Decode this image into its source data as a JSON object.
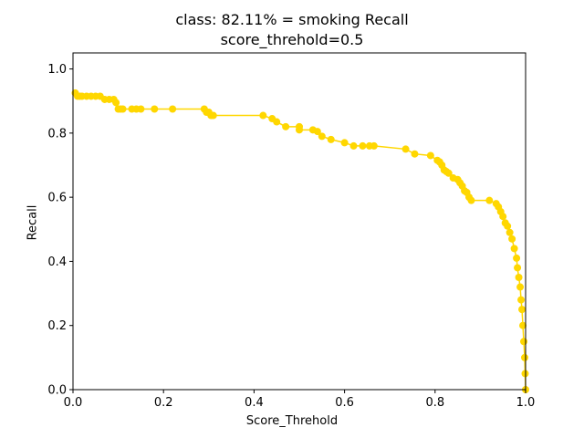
{
  "chart_data": {
    "type": "line",
    "title": "class: 82.11% = smoking Recall",
    "subtitle": "score_threhold=0.5",
    "xlabel": "Score_Threhold",
    "ylabel": "Recall",
    "xlim": [
      0.0,
      1.0
    ],
    "ylim": [
      0.0,
      1.05
    ],
    "x_ticks": [
      "0.0",
      "0.2",
      "0.4",
      "0.6",
      "0.8",
      "1.0"
    ],
    "y_ticks": [
      "0.0",
      "0.2",
      "0.4",
      "0.6",
      "0.8",
      "1.0"
    ],
    "grid": false,
    "line_color": "#FFD700",
    "marker": "circle",
    "series": [
      {
        "x": [
          0.005,
          0.01,
          0.015,
          0.02,
          0.03,
          0.04,
          0.05,
          0.06,
          0.07,
          0.08,
          0.09,
          0.095,
          0.1,
          0.105,
          0.11,
          0.13,
          0.14,
          0.15,
          0.18,
          0.22,
          0.29,
          0.295,
          0.3,
          0.305,
          0.31,
          0.42,
          0.44,
          0.45,
          0.47,
          0.5,
          0.5,
          0.53,
          0.54,
          0.55,
          0.57,
          0.6,
          0.62,
          0.64,
          0.655,
          0.665,
          0.735,
          0.755,
          0.79,
          0.805,
          0.81,
          0.815,
          0.82,
          0.825,
          0.83,
          0.84,
          0.85,
          0.855,
          0.86,
          0.865,
          0.87,
          0.875,
          0.88,
          0.92,
          0.935,
          0.94,
          0.945,
          0.95,
          0.955,
          0.96,
          0.965,
          0.97,
          0.975,
          0.98,
          0.982,
          0.985,
          0.988,
          0.99,
          0.992,
          0.994,
          0.996,
          0.998,
          0.999,
          1.0
        ],
        "y": [
          0.925,
          0.915,
          0.915,
          0.915,
          0.915,
          0.915,
          0.915,
          0.915,
          0.905,
          0.905,
          0.905,
          0.895,
          0.875,
          0.875,
          0.875,
          0.875,
          0.875,
          0.875,
          0.875,
          0.875,
          0.875,
          0.865,
          0.865,
          0.855,
          0.855,
          0.855,
          0.845,
          0.835,
          0.82,
          0.82,
          0.81,
          0.81,
          0.805,
          0.79,
          0.78,
          0.77,
          0.76,
          0.76,
          0.76,
          0.76,
          0.75,
          0.735,
          0.73,
          0.715,
          0.71,
          0.7,
          0.685,
          0.68,
          0.675,
          0.66,
          0.655,
          0.645,
          0.635,
          0.62,
          0.615,
          0.6,
          0.59,
          0.59,
          0.58,
          0.57,
          0.555,
          0.54,
          0.52,
          0.51,
          0.49,
          0.47,
          0.44,
          0.41,
          0.38,
          0.35,
          0.32,
          0.28,
          0.25,
          0.2,
          0.15,
          0.1,
          0.05,
          0.0
        ]
      }
    ]
  }
}
